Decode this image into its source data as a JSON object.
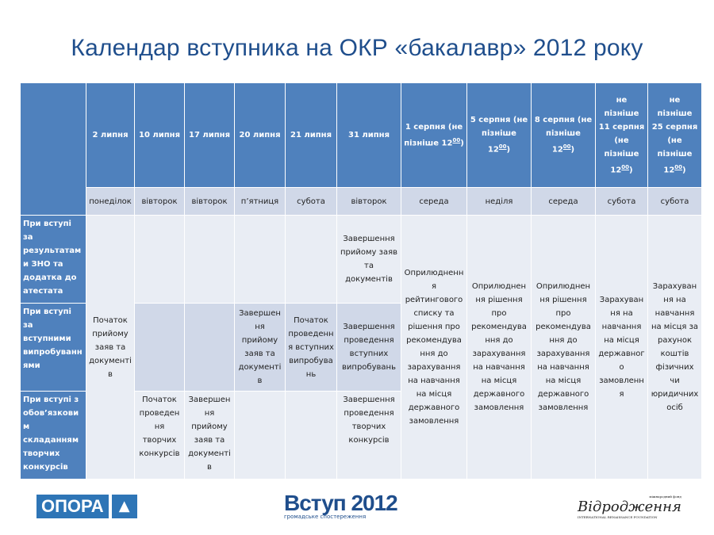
{
  "title": "Календар вступника на ОКР «бакалавр» 2012 року",
  "columns": [
    {
      "date": "2 липня",
      "day": "понеділок"
    },
    {
      "date": "10 липня",
      "day": "вівторок"
    },
    {
      "date": "17 липня",
      "day": "вівторок"
    },
    {
      "date": "20 липня",
      "day": "п’ятниця"
    },
    {
      "date": "21 липня",
      "day": "субота"
    },
    {
      "date": "31 липня",
      "day": "вівторок"
    },
    {
      "date": "1 серпня (не пізніше 12",
      "sup": "00",
      "close": ")",
      "day": "середа"
    },
    {
      "date": "5 серпня (не пізніше 12",
      "sup": "00",
      "close": ")",
      "day": "неділя"
    },
    {
      "date": "8 серпня (не пізніше 12",
      "sup": "00",
      "close": ")",
      "day": "середа"
    },
    {
      "date": "не пізніше 11 серпня (не пізніше 12",
      "sup": "00",
      "close": ")",
      "day": "субота"
    },
    {
      "date": "не пізніше 25 серпня (не пізніше 12",
      "sup": "00",
      "close": ")",
      "day": "субота"
    }
  ],
  "rows": [
    "При вступі за результатами ЗНО та додатка до атестата",
    "При вступі за вступними випробуваннями",
    "При вступі з обов’язковим складанням творчих конкурсів"
  ],
  "cells": {
    "start_all": "Початок прийому заяв та документів",
    "r1_31": "Завершення прийому заяв та документів",
    "r2_20": "Завершення прийому заяв та документів",
    "r2_21": "Початок проведення вступних випробувань",
    "r2_31": "Завершення проведення вступних випробувань",
    "r3_10": "Початок проведення творчих конкурсів",
    "r3_17": "Завершення прийому заяв та документів",
    "r3_31": "Завершення проведення творчих конкурсів",
    "aug1": "Оприлюднення рейтингового списку та рішення про рекомендування до зарахування на навчання на місця державного замовлення",
    "aug5": "Оприлюднення рішення про рекомендування до зарахування на навчання на місця державного замовлення",
    "aug8": "Оприлюднення рішення про рекомендування до зарахування на навчання на місця державного замовлення",
    "aug11": "Зарахування на навчання на місця державного замовлення",
    "aug25": "Зарахування на навчання на місця за рахунок коштів фізичних чи юридичних осіб"
  },
  "logos": {
    "opora": "ОПОРА",
    "vstup": "Вступ 2012",
    "vstup_sub": "громадське спостереження",
    "vidrodzhennia": "Відродження",
    "vidrodzhennia_top": "міжнародний фонд",
    "vidrodzhennia_sub": "INTERNATIONAL RENAISSANCE FOUNDATION"
  },
  "colors": {
    "header": "#4f81bd",
    "title": "#1f4e8c",
    "cell_light": "#e9edf4",
    "cell_dark": "#d0d8e8"
  }
}
